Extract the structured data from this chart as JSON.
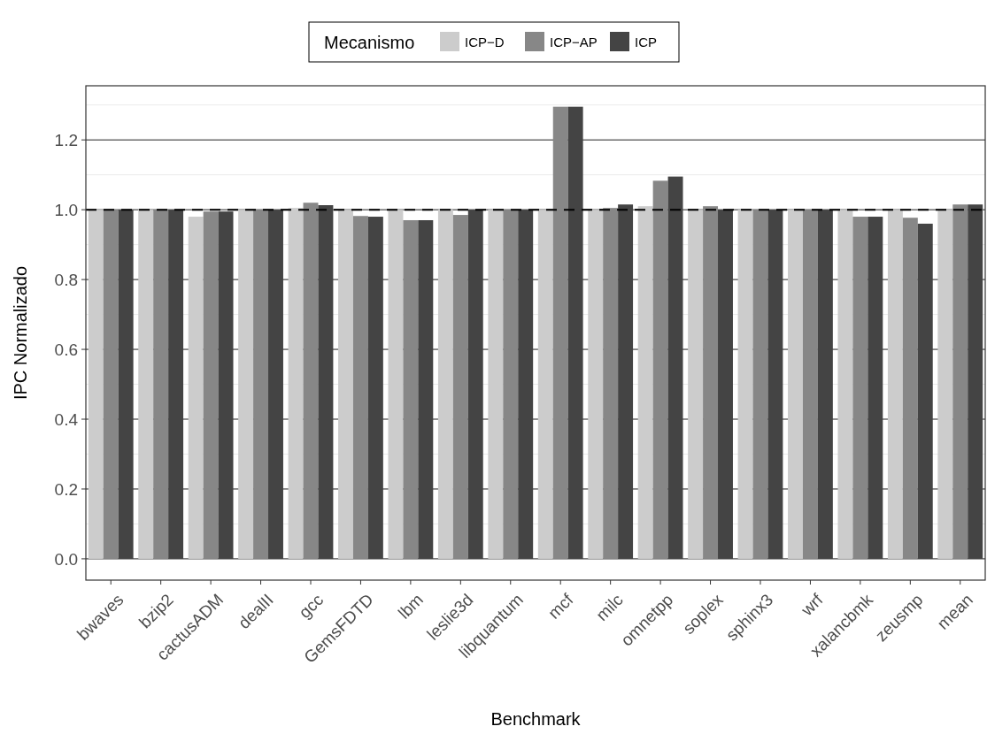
{
  "chart_data": {
    "type": "bar",
    "xlabel": "Benchmark",
    "ylabel": "IPC Normalizado",
    "legend_title": "Mecanismo",
    "legend": "top",
    "categories": [
      "bwaves",
      "bzip2",
      "cactusADM",
      "dealII",
      "gcc",
      "GemsFDTD",
      "lbm",
      "leslie3d",
      "libquantum",
      "mcf",
      "milc",
      "omnetpp",
      "soplex",
      "sphinx3",
      "wrf",
      "xalancbmk",
      "zeusmp",
      "mean"
    ],
    "series": [
      {
        "name": "ICP−D",
        "color": "#cccccc",
        "values": [
          1.0,
          1.0,
          0.98,
          1.0,
          1.005,
          1.0,
          1.0,
          1.0,
          1.0,
          1.0,
          1.0,
          1.01,
          1.0,
          1.0,
          1.0,
          1.0,
          1.0,
          1.0
        ]
      },
      {
        "name": "ICP−AP",
        "color": "#878787",
        "values": [
          1.0,
          1.0,
          0.995,
          1.0,
          1.02,
          0.982,
          0.97,
          0.985,
          1.0,
          1.295,
          1.005,
          1.083,
          1.01,
          1.0,
          1.0,
          0.98,
          0.977,
          1.015
        ]
      },
      {
        "name": "ICP",
        "color": "#444444",
        "values": [
          1.0,
          1.0,
          0.995,
          1.0,
          1.013,
          0.98,
          0.97,
          1.0,
          1.0,
          1.295,
          1.015,
          1.095,
          1.0,
          1.0,
          1.0,
          0.98,
          0.96,
          1.015
        ]
      }
    ],
    "ylim": [
      -0.061,
      1.355
    ],
    "yticks": [
      {
        "value": 0,
        "label": "0.0"
      },
      0.2,
      0.4,
      0.6,
      0.8,
      {
        "value": 1,
        "label": "1.0"
      },
      1.2
    ],
    "grid": "y",
    "ref_lines": [
      {
        "axis": "y",
        "value": 1,
        "line_style": "dashed",
        "color": "#000000"
      }
    ]
  }
}
